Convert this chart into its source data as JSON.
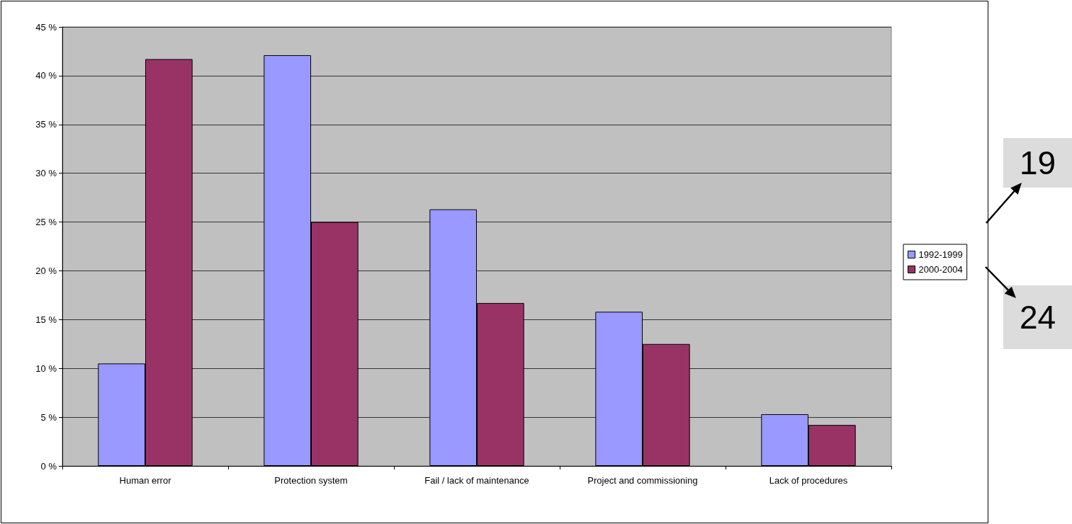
{
  "chart_data": {
    "type": "bar",
    "categories": [
      "Human error",
      "Protection system",
      "Fail / lack of maintenance",
      "Project and commissioning",
      "Lack of procedures"
    ],
    "series": [
      {
        "name": "1992-1999",
        "color": "#9999ff",
        "values": [
          10.5,
          42.1,
          26.3,
          15.8,
          5.3
        ]
      },
      {
        "name": "2000-2004",
        "color": "#993366",
        "values": [
          41.7,
          25,
          16.7,
          12.5,
          4.2
        ]
      }
    ],
    "ylim": [
      0,
      45
    ],
    "yticks": [
      {
        "value": 0,
        "label": "0 %"
      },
      {
        "value": 5,
        "label": "5 %"
      },
      {
        "value": 10,
        "label": "10 %"
      },
      {
        "value": 15,
        "label": "15 %"
      },
      {
        "value": 20,
        "label": "20 %"
      },
      {
        "value": 25,
        "label": "25 %"
      },
      {
        "value": 30,
        "label": "30 %"
      },
      {
        "value": 35,
        "label": "35 %"
      },
      {
        "value": 40,
        "label": "40 %"
      },
      {
        "value": 45,
        "label": "45 %"
      }
    ],
    "grid": "y",
    "legend": "right",
    "annotations": [
      "19",
      "24"
    ]
  }
}
